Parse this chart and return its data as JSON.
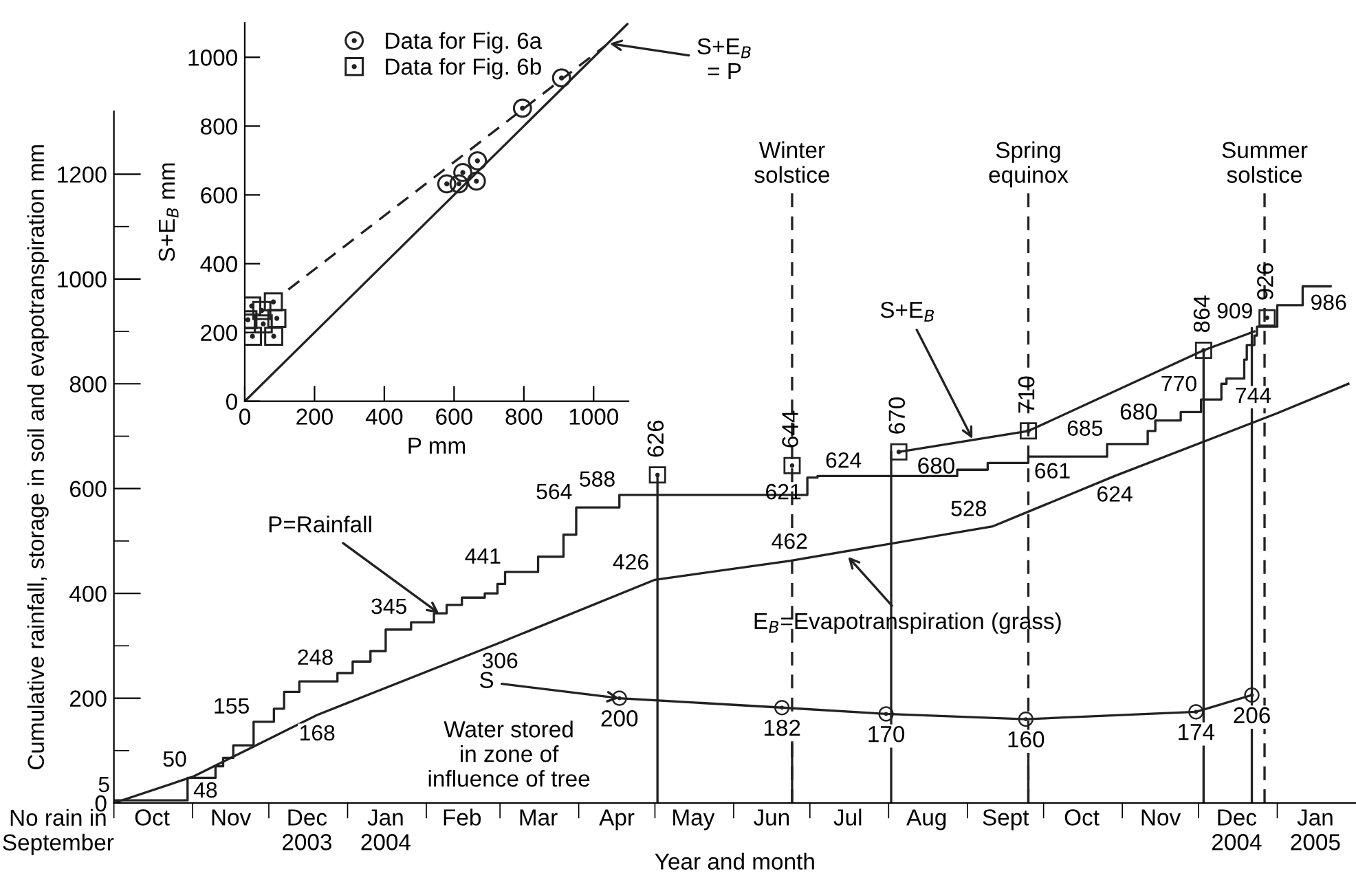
{
  "chart_data": [
    {
      "type": "line",
      "xlabel": "Year and month",
      "ylabel": "Cumulative rainfall, storage in soil and evapotranspiration mm",
      "xlim": [
        "2003-10-01",
        "2005-02-01"
      ],
      "ylim": [
        0,
        1320
      ],
      "xticks": [
        {
          "value": "2003-10-01",
          "label": null
        },
        {
          "value": "2003-10-16",
          "label": "Oct"
        },
        {
          "value": "2003-11-01",
          "label": null
        },
        {
          "value": "2003-11-16",
          "label": "Nov"
        },
        {
          "value": "2003-12-01",
          "label": null
        },
        {
          "value": "2003-12-16",
          "label": "Dec\n2003"
        },
        {
          "value": "2004-01-01",
          "label": null
        },
        {
          "value": "2004-01-16",
          "label": "Jan\n2004"
        },
        {
          "value": "2004-02-01",
          "label": null
        },
        {
          "value": "2004-02-15",
          "label": "Feb"
        },
        {
          "value": "2004-03-01",
          "label": null
        },
        {
          "value": "2004-03-16",
          "label": "Mar"
        },
        {
          "value": "2004-04-01",
          "label": null
        },
        {
          "value": "2004-04-16",
          "label": "Apr"
        },
        {
          "value": "2004-05-01",
          "label": null
        },
        {
          "value": "2004-05-16",
          "label": "May"
        },
        {
          "value": "2004-06-01",
          "label": null
        },
        {
          "value": "2004-06-16",
          "label": "Jun"
        },
        {
          "value": "2004-07-01",
          "label": null
        },
        {
          "value": "2004-07-16",
          "label": "Jul"
        },
        {
          "value": "2004-08-01",
          "label": null
        },
        {
          "value": "2004-08-16",
          "label": "Aug"
        },
        {
          "value": "2004-09-01",
          "label": null
        },
        {
          "value": "2004-09-16",
          "label": "Sept"
        },
        {
          "value": "2004-10-01",
          "label": null
        },
        {
          "value": "2004-10-16",
          "label": "Oct"
        },
        {
          "value": "2004-11-01",
          "label": null
        },
        {
          "value": "2004-11-16",
          "label": "Nov"
        },
        {
          "value": "2004-12-01",
          "label": null
        },
        {
          "value": "2004-12-16",
          "label": "Dec\n2004"
        },
        {
          "value": "2005-01-01",
          "label": null
        },
        {
          "value": "2005-01-16",
          "label": "Jan\n2005"
        }
      ],
      "yticks": [
        0,
        {
          "value": 100,
          "label": null
        },
        200,
        {
          "value": 300,
          "label": null
        },
        400,
        {
          "value": 500,
          "label": null
        },
        600,
        {
          "value": 700,
          "label": null
        },
        800,
        {
          "value": 900,
          "label": null
        },
        1000,
        {
          "value": 1100,
          "label": null
        },
        1200
      ],
      "series": [
        {
          "type": "step",
          "color": "#222222",
          "x": [
            "2003-10-01",
            "2003-10-30",
            "2003-11-10",
            "2003-11-13",
            "2003-11-17",
            "2003-11-25",
            "2003-12-03",
            "2003-12-07",
            "2003-12-13",
            "2003-12-28",
            "2004-01-03",
            "2004-01-10",
            "2004-01-16",
            "2004-01-26",
            "2004-02-04",
            "2004-02-09",
            "2004-02-15",
            "2004-02-24",
            "2004-02-29",
            "2004-03-03",
            "2004-03-16",
            "2004-03-26",
            "2004-03-31",
            "2004-04-17",
            "2004-06-30",
            "2004-07-04",
            "2004-08-28",
            "2004-09-09",
            "2004-09-25",
            "2004-10-26",
            "2004-11-11",
            "2004-11-14",
            "2004-11-24",
            "2004-12-02",
            "2004-12-10",
            "2004-12-12",
            "2004-12-19",
            "2004-12-20",
            "2004-12-23",
            "2004-12-24",
            "2005-01-01",
            "2005-01-11",
            "2005-01-22"
          ],
          "values": [
            5,
            48,
            70,
            86,
            110,
            155,
            180,
            212,
            232,
            248,
            270,
            290,
            331,
            345,
            362,
            378,
            392,
            400,
            418,
            441,
            470,
            512,
            564,
            588,
            621,
            624,
            636,
            649,
            661,
            685,
            710,
            730,
            746,
            770,
            800,
            810,
            846,
            874,
            892,
            909,
            950,
            986,
            986
          ],
          "value_labels": [
            "5",
            "48",
            null,
            null,
            null,
            "155",
            null,
            null,
            null,
            "248",
            null,
            null,
            null,
            "345",
            null,
            null,
            null,
            null,
            null,
            "441",
            null,
            null,
            "564",
            "588",
            "621",
            "624",
            null,
            null,
            "661",
            "685",
            null,
            null,
            null,
            "770",
            null,
            null,
            null,
            null,
            null,
            "909",
            null,
            "986",
            null
          ]
        },
        {
          "type": "line",
          "color": "#222222",
          "x": [
            "2003-10-01",
            "2003-11-01",
            "2003-12-20",
            "2004-03-01",
            "2004-05-01",
            "2004-06-23",
            "2004-09-11",
            "2004-10-29",
            "2005-01-01",
            "2005-01-29"
          ],
          "values": [
            0,
            50,
            168,
            306,
            426,
            462,
            528,
            624,
            744,
            800
          ],
          "value_labels": [
            null,
            "50",
            "168",
            "306",
            "426",
            "462",
            "528",
            "624",
            "744",
            null
          ]
        },
        {
          "type": "line",
          "color": "#222222",
          "x": [
            "2004-08-05",
            "2004-09-25",
            "2004-12-03",
            "2004-12-23"
          ],
          "values": [
            670,
            710,
            864,
            900
          ]
        },
        {
          "type": "scatter",
          "marker": "square",
          "color": "#222222",
          "x": [
            "2004-05-02",
            "2004-06-24",
            "2004-08-05",
            "2004-09-25",
            "2004-12-03",
            "2004-12-28"
          ],
          "values": [
            626,
            644,
            670,
            710,
            864,
            926
          ],
          "value_labels": [
            "626",
            "644",
            "670",
            "710",
            "864",
            "926"
          ]
        },
        {
          "type": "line",
          "marker": "circle",
          "color": "#222222",
          "x": [
            "2004-04-17",
            "2004-06-20",
            "2004-07-31",
            "2004-09-24",
            "2004-11-30",
            "2004-12-22"
          ],
          "values": [
            200,
            182,
            170,
            160,
            174,
            206
          ],
          "value_labels": [
            "200",
            "182",
            "170",
            "160",
            "174",
            "206"
          ]
        },
        {
          "type": "line",
          "color": "#222222",
          "x": [
            "2004-05-02",
            "2004-05-02"
          ],
          "values": [
            0,
            626
          ]
        },
        {
          "type": "line",
          "color": "#222222",
          "x": [
            "2004-08-02",
            "2004-08-02"
          ],
          "values": [
            0,
            670
          ]
        },
        {
          "type": "line",
          "color": "#222222",
          "x": [
            "2004-12-03",
            "2004-12-03"
          ],
          "values": [
            0,
            864
          ]
        },
        {
          "type": "line",
          "color": "#222222",
          "x": [
            "2004-12-22",
            "2004-12-22"
          ],
          "values": [
            0,
            906
          ]
        },
        {
          "type": "line",
          "color": "#222222",
          "x": [
            "2004-06-24",
            "2004-06-24"
          ],
          "values": [
            0,
            119
          ]
        },
        {
          "type": "line",
          "color": "#222222",
          "x": [
            "2004-09-25",
            "2004-09-25"
          ],
          "values": [
            0,
            95
          ]
        }
      ],
      "ref_lines": [
        {
          "axis": "x",
          "value": "2004-06-24",
          "label": "Winter\nsolstice",
          "line_style": "dashed"
        },
        {
          "axis": "x",
          "value": "2004-09-25",
          "label": "Spring\nequinox",
          "line_style": "dashed"
        },
        {
          "axis": "x",
          "value": "2004-12-27",
          "label": "Summer\nsolstice",
          "line_style": "dashed"
        }
      ],
      "annotations": [
        {
          "text": "P=Rainfall",
          "x": "2004-02-06",
          "y": 362
        },
        {
          "text": "S+E$_{B}$",
          "x": "2004-09-03",
          "y": 695
        },
        {
          "text": "E$_{B}$=Evapotranspiration (grass)",
          "x": "2004-07-16",
          "y": 470
        },
        {
          "text": "S",
          "x": "2004-04-17",
          "y": 200
        },
        "Water stored\nin zone of\ninfluence of tree",
        "680",
        "680",
        "No rain in\nSeptember"
      ]
    },
    {
      "type": "scatter",
      "xlabel": "P mm",
      "ylabel": "S+E$_{B}$ mm",
      "xlim": [
        0,
        1100
      ],
      "ylim": [
        0,
        1100
      ],
      "xticks": [
        0,
        200,
        400,
        600,
        800,
        1000
      ],
      "yticks": [
        0,
        200,
        400,
        600,
        800,
        1000
      ],
      "legend": "top",
      "series": [
        {
          "name": "Data for Fig. 6a",
          "marker": "circle",
          "color": "#222222",
          "x": [
            579,
            614,
            625,
            664,
            667,
            796,
            908
          ],
          "values": [
            632,
            632,
            665,
            640,
            699,
            852,
            940
          ]
        },
        {
          "name": "Data for Fig. 6b",
          "marker": "square",
          "color": "#222222",
          "x": [
            20,
            49,
            82,
            9,
            92,
            53,
            22,
            83
          ],
          "values": [
            277,
            264,
            289,
            237,
            241,
            225,
            189,
            189
          ]
        },
        {
          "type": "line",
          "color": "#222222",
          "line_style": "solid",
          "x": [
            0,
            1100
          ],
          "values": [
            0,
            1100
          ]
        },
        {
          "type": "line",
          "color": "#222222",
          "line_style": "dashed",
          "x": [
            125,
            1033
          ],
          "values": [
            325,
            1033
          ]
        }
      ],
      "annotations": [
        {
          "text": "S+E$_{B}$\n= P",
          "x": 1046,
          "y": 1040
        }
      ]
    }
  ]
}
